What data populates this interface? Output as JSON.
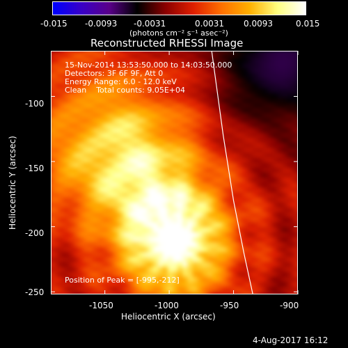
{
  "colorbar": {
    "ticks": [
      "-0.015",
      "-0.0093",
      "-0.0031",
      "0.0031",
      "0.0093",
      "0.015"
    ],
    "unit_label": "(photons cm⁻² s⁻¹ asec⁻²)",
    "colors": [
      "#0000ff",
      "#3a00c8",
      "#5a008a",
      "#000000",
      "#8a0000",
      "#e02000",
      "#ff7000",
      "#ffb000",
      "#ffff80",
      "#ffffff"
    ]
  },
  "title": "Reconstructed RHESSI Image",
  "annotations": {
    "line1": "15-Nov-2014 13:53:50.000 to 14:03:50.000",
    "line2": "Detectors: 3F 6F 9F, Att 0",
    "line3": "Energy Range: 6.0 - 12.0 keV",
    "line4": "Clean    Total counts: 9.05E+04",
    "peak": "Position of Peak = [-995,-212]"
  },
  "axes": {
    "xlabel": "Heliocentric X (arcsec)",
    "ylabel": "Heliocentric Y (arcsec)",
    "xticks": [
      "-1050",
      "-1000",
      "-950",
      "-900"
    ],
    "yticks": [
      "-100",
      "-150",
      "-200",
      "-250"
    ]
  },
  "footer": {
    "date": "4-Aug-2017 16:12"
  },
  "chart_data": {
    "type": "heatmap",
    "title": "Reconstructed RHESSI Image",
    "xlabel": "Heliocentric X (arcsec)",
    "ylabel": "Heliocentric Y (arcsec)",
    "xlim": [
      -1092,
      -900
    ],
    "ylim": [
      -252,
      -65
    ],
    "zlim": [
      -0.015,
      0.015
    ],
    "peak": [
      -995,
      -212
    ],
    "limb_curve": [
      [
        -967,
        -65
      ],
      [
        -958,
        -130
      ],
      [
        -950,
        -180
      ],
      [
        -942,
        -220
      ],
      [
        -935,
        -252
      ]
    ]
  }
}
